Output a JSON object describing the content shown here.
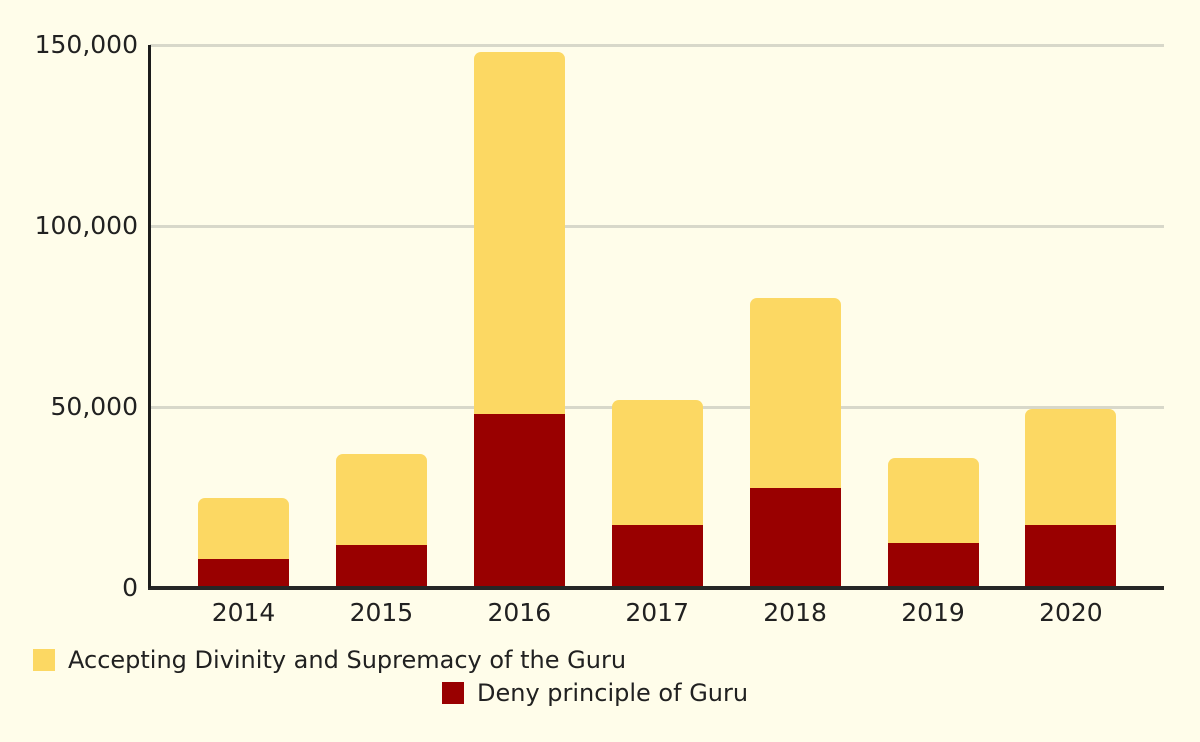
{
  "colors": {
    "background": "#FFFDEA",
    "bar_yellow": "#FCD863",
    "bar_red": "#990000",
    "gridline": "#D8D8CA",
    "axis": "#1C1C1C",
    "text": "#212121"
  },
  "chart_data": {
    "type": "bar",
    "stacked": true,
    "categories": [
      "2014",
      "2015",
      "2016",
      "2017",
      "2018",
      "2019",
      "2020"
    ],
    "series": [
      {
        "name": "Accepting Divinity and Supremacy of the Guru",
        "color": "#FCD863",
        "values": [
          17000,
          25000,
          100000,
          34500,
          52500,
          23500,
          32000
        ]
      },
      {
        "name": "Deny principle of Guru",
        "color": "#990000",
        "values": [
          8000,
          12000,
          48000,
          17500,
          27500,
          12500,
          17500
        ]
      }
    ],
    "stack_totals": [
      25000,
      37000,
      148000,
      52000,
      80000,
      36000,
      49500
    ],
    "title": "",
    "xlabel": "",
    "ylabel": "",
    "ylim": [
      0,
      150000
    ],
    "yticks": [
      0,
      50000,
      100000,
      150000
    ],
    "ytick_labels": [
      "0",
      "50,000",
      "100,000",
      "150,000"
    ],
    "grid": true,
    "legend_position": "bottom"
  },
  "legend": {
    "items": [
      {
        "label": "Accepting Divinity and Supremacy of the Guru",
        "swatch_color": "#FCD863"
      },
      {
        "label": "Deny principle of Guru",
        "swatch_color": "#990000"
      }
    ]
  }
}
